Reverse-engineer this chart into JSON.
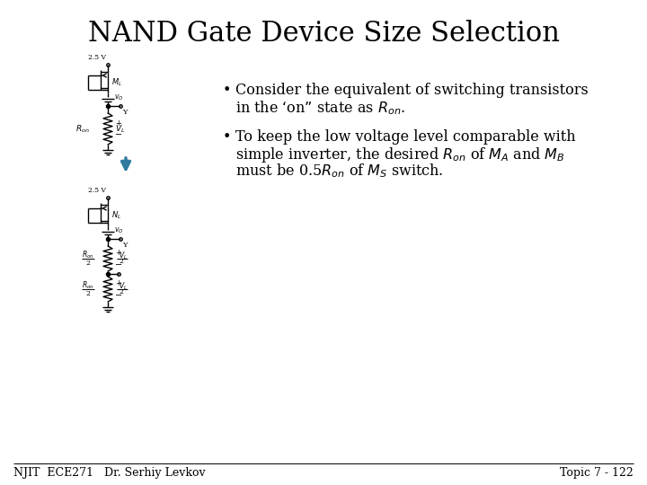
{
  "title": "NAND Gate Device Size Selection",
  "title_fontsize": 22,
  "background_color": "#ffffff",
  "footer_left": "NJIT  ECE271   Dr. Serhiy Levkov",
  "footer_right": "Topic 7 - 122",
  "footer_fontsize": 9,
  "text_fontsize": 11.5,
  "arrow_color": "#2e7a9e",
  "diagram_color": "#000000"
}
